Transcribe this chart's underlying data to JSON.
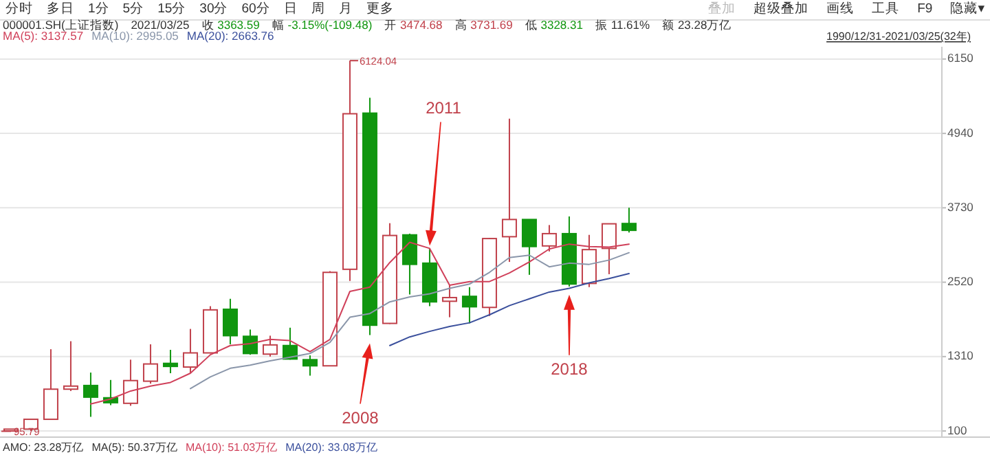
{
  "chart_data": {
    "type": "candlestick",
    "title": "000001.SH(上证指数)",
    "categories": [
      null,
      null,
      null,
      null,
      null,
      null,
      null,
      null,
      null,
      null,
      null,
      null,
      null,
      null,
      null,
      null,
      null,
      null,
      null,
      null,
      null,
      null,
      null,
      null,
      null,
      null,
      null,
      null,
      null,
      null,
      null,
      null
    ],
    "ohlc": [
      [
        100,
        130,
        95.79,
        130
      ],
      [
        130,
        290,
        100,
        290
      ],
      [
        290,
        1430,
        290,
        780
      ],
      [
        780,
        1560,
        750,
        830
      ],
      [
        840,
        1050,
        330,
        650
      ],
      [
        640,
        930,
        520,
        560
      ],
      [
        550,
        1260,
        510,
        920
      ],
      [
        910,
        1510,
        870,
        1190
      ],
      [
        1200,
        1420,
        1040,
        1150
      ],
      [
        1140,
        1760,
        1050,
        1370
      ],
      [
        1370,
        2130,
        1360,
        2070
      ],
      [
        2080,
        2250,
        1510,
        1650
      ],
      [
        1640,
        1750,
        1340,
        1360
      ],
      [
        1350,
        1650,
        1310,
        1500
      ],
      [
        1490,
        1780,
        1260,
        1270
      ],
      [
        1260,
        1330,
        1000,
        1160
      ],
      [
        1160,
        2700,
        1160,
        2680
      ],
      [
        2730,
        6124.04,
        2540,
        5260
      ],
      [
        5270,
        5520,
        1660,
        1820
      ],
      [
        1850,
        3480,
        1840,
        3280
      ],
      [
        3290,
        3310,
        2320,
        2810
      ],
      [
        2830,
        3070,
        2130,
        2200
      ],
      [
        2210,
        2480,
        1950,
        2270
      ],
      [
        2290,
        2440,
        1850,
        2120
      ],
      [
        2110,
        3240,
        1970,
        3230
      ],
      [
        3260,
        5180,
        2850,
        3540
      ],
      [
        3540,
        3540,
        2640,
        3100
      ],
      [
        3110,
        3450,
        3020,
        3310
      ],
      [
        3310,
        3590,
        2450,
        2490
      ],
      [
        2500,
        3290,
        2440,
        3050
      ],
      [
        3070,
        3470,
        2650,
        3470
      ],
      [
        3474.68,
        3731.69,
        3328.31,
        3363.59
      ]
    ],
    "colors": [
      "#c0404a",
      "#c0404a",
      "#c0404a",
      "#c0404a",
      "#10960f",
      "#10960f",
      "#c0404a",
      "#c0404a",
      "#10960f",
      "#c0404a",
      "#c0404a",
      "#10960f",
      "#10960f",
      "#c0404a",
      "#10960f",
      "#10960f",
      "#c0404a",
      "#c0404a",
      "#10960f",
      "#c0404a",
      "#10960f",
      "#10960f",
      "#c0404a",
      "#10960f",
      "#c0404a",
      "#c0404a",
      "#10960f",
      "#c0404a",
      "#10960f",
      "#c0404a",
      "#c0404a",
      "#10960f"
    ],
    "series": [
      {
        "type": "line",
        "name": "MA(5): 3137.57",
        "color": "#d0405a",
        "values": [
          null,
          null,
          null,
          null,
          540,
          620,
          750,
          830,
          890,
          1040,
          1340,
          1490,
          1520,
          1590,
          1570,
          1390,
          1590,
          2370,
          2440,
          2840,
          3170,
          3070,
          2470,
          2530,
          2530,
          2670,
          2850,
          3060,
          3140,
          3100,
          3090,
          3140
        ]
      },
      {
        "type": "line",
        "name": "MA(10): 2995.05",
        "color": "#8a96aa",
        "values": [
          null,
          null,
          null,
          null,
          null,
          null,
          null,
          null,
          null,
          790,
          980,
          1120,
          1170,
          1240,
          1300,
          1360,
          1540,
          1950,
          2010,
          2200,
          2280,
          2330,
          2420,
          2490,
          2680,
          2920,
          2960,
          2770,
          2830,
          2810,
          2880,
          3000
        ]
      },
      {
        "type": "line",
        "name": "MA(20): 2663.76",
        "color": "#3a4f9c",
        "values": [
          null,
          null,
          null,
          null,
          null,
          null,
          null,
          null,
          null,
          null,
          null,
          null,
          null,
          null,
          null,
          null,
          null,
          null,
          null,
          1490,
          1630,
          1720,
          1800,
          1860,
          1990,
          2140,
          2250,
          2360,
          2420,
          2510,
          2580,
          2660
        ]
      }
    ],
    "ylim": [
      0,
      6350
    ],
    "yticks": [
      100,
      1310,
      2520,
      3730,
      4940,
      6150
    ],
    "grid": "y",
    "legend": "top left",
    "tick_labels": "y",
    "annotations": [
      "6124.04",
      "95.79",
      "2008",
      "2011",
      "2018",
      "分时",
      "多日",
      "1分",
      "5分",
      "15分",
      "30分",
      "60分",
      "日",
      "周",
      "月",
      "更多",
      "叠加",
      "超级叠加",
      "画线",
      "工具",
      "F9",
      "隐藏▾",
      "2021/03/25",
      "收 3363.59",
      "幅 -3.15%(-109.48)",
      "开 3474.68",
      "高 3731.69",
      "低 3328.31",
      "振 11.61%",
      "额 23.28万亿",
      "1990/12/31-2021/03/25(32年)",
      "AMO: 23.28万亿",
      "MA(5): 50.37万亿",
      "MA(10): 51.03万亿",
      "MA(20): 33.08万亿"
    ]
  }
}
